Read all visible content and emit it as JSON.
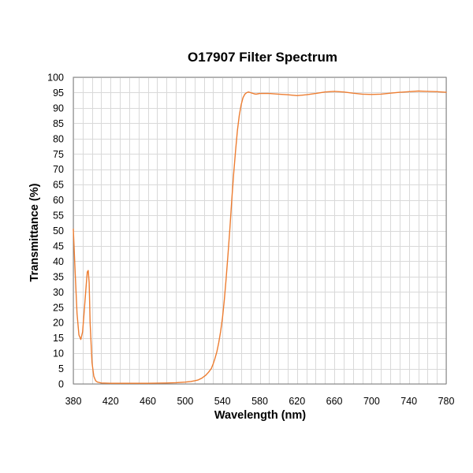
{
  "chart_data": {
    "type": "line",
    "title": "O17907 Filter Spectrum",
    "xlabel": "Wavelength (nm)",
    "ylabel": "Transmittance (%)",
    "xlim": [
      380,
      780
    ],
    "ylim": [
      0,
      100
    ],
    "xticks": [
      380,
      420,
      460,
      500,
      540,
      580,
      620,
      660,
      700,
      740,
      780
    ],
    "yticks": [
      0,
      5,
      10,
      15,
      20,
      25,
      30,
      35,
      40,
      45,
      50,
      55,
      60,
      65,
      70,
      75,
      80,
      85,
      90,
      95,
      100
    ],
    "grid": true,
    "line_color": "#ed7d31",
    "series": [
      {
        "name": "",
        "x": [
          380,
          382,
          384,
          386,
          388,
          390,
          392,
          394,
          395,
          396,
          397,
          398,
          400,
          402,
          404,
          406,
          410,
          420,
          440,
          460,
          480,
          490,
          500,
          506,
          510,
          514,
          518,
          522,
          525,
          528,
          530,
          532,
          534,
          536,
          538,
          540,
          542,
          544,
          546,
          548,
          550,
          552,
          554,
          556,
          558,
          560,
          562,
          564,
          566,
          568,
          570,
          572,
          574,
          576,
          578,
          580,
          590,
          600,
          610,
          620,
          630,
          640,
          650,
          660,
          670,
          680,
          690,
          700,
          710,
          720,
          730,
          740,
          750,
          760,
          770,
          780
        ],
        "y": [
          50.5,
          36,
          23,
          16,
          14.5,
          17,
          25,
          33,
          36.5,
          37,
          33,
          20,
          7,
          2.5,
          1,
          0.6,
          0.3,
          0.2,
          0.2,
          0.2,
          0.3,
          0.4,
          0.6,
          0.8,
          1.0,
          1.3,
          1.9,
          2.8,
          3.8,
          5.0,
          6.5,
          8.3,
          10.5,
          13.5,
          17.0,
          21.5,
          27.5,
          34.5,
          42.5,
          51.0,
          60.0,
          68.5,
          76.0,
          82.5,
          87.5,
          91.0,
          93.3,
          94.5,
          95.0,
          95.2,
          95.0,
          94.8,
          94.6,
          94.5,
          94.6,
          94.7,
          94.7,
          94.5,
          94.3,
          94.0,
          94.3,
          94.7,
          95.2,
          95.4,
          95.2,
          94.8,
          94.5,
          94.4,
          94.5,
          94.8,
          95.1,
          95.3,
          95.5,
          95.4,
          95.3,
          95.1
        ]
      }
    ]
  }
}
